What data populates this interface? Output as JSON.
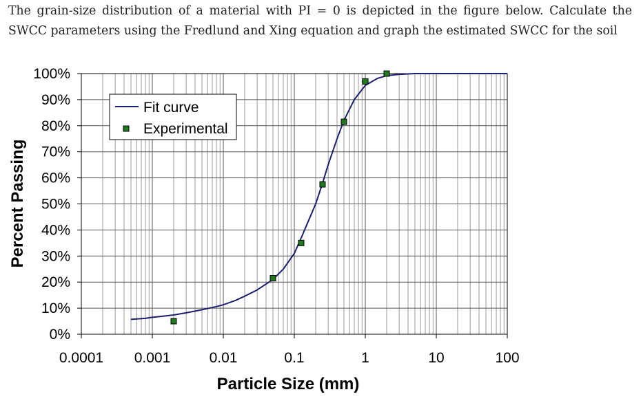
{
  "problem_text": "The grain-size distribution of a material with PI = 0 is depicted in the figure below. Calculate the SWCC parameters using the Fredlund and Xing equation and graph the estimated SWCC for the soil",
  "chart_data": {
    "type": "scatter",
    "xlabel": "Particle Size (mm)",
    "ylabel": "Percent Passing",
    "xscale": "log",
    "xlim": [
      0.0001,
      100
    ],
    "ylim": [
      0,
      100
    ],
    "grid": true,
    "legend_position": "top-left",
    "x_ticks": [
      "0.0001",
      "0.001",
      "0.01",
      "0.1",
      "1",
      "10",
      "100"
    ],
    "y_ticks": [
      "0%",
      "10%",
      "20%",
      "30%",
      "40%",
      "50%",
      "60%",
      "70%",
      "80%",
      "90%",
      "100%"
    ],
    "series": [
      {
        "name": "Fit curve",
        "kind": "line",
        "color": "#1a1f6e",
        "x": [
          0.0005,
          0.0008,
          0.001,
          0.0015,
          0.002,
          0.003,
          0.005,
          0.008,
          0.01,
          0.015,
          0.02,
          0.03,
          0.05,
          0.07,
          0.1,
          0.13,
          0.15,
          0.2,
          0.25,
          0.3,
          0.4,
          0.5,
          0.7,
          1,
          1.5,
          2,
          3,
          5,
          10,
          100
        ],
        "y": [
          5.7,
          6.1,
          6.5,
          7.0,
          7.4,
          8.2,
          9.4,
          10.6,
          11.3,
          13.0,
          14.6,
          17.0,
          21.0,
          25.0,
          31.0,
          38.0,
          42.0,
          50.0,
          58.0,
          65.0,
          75.0,
          82.0,
          90.0,
          95.5,
          98.2,
          99.2,
          99.7,
          100,
          100,
          100
        ]
      },
      {
        "name": "Experimental",
        "kind": "scatter",
        "color": "#1f7a1f",
        "x": [
          0.002,
          0.05,
          0.125,
          0.25,
          0.5,
          1,
          2
        ],
        "y": [
          5.0,
          21.5,
          35.0,
          57.5,
          81.5,
          97.0,
          100.0
        ]
      }
    ]
  }
}
